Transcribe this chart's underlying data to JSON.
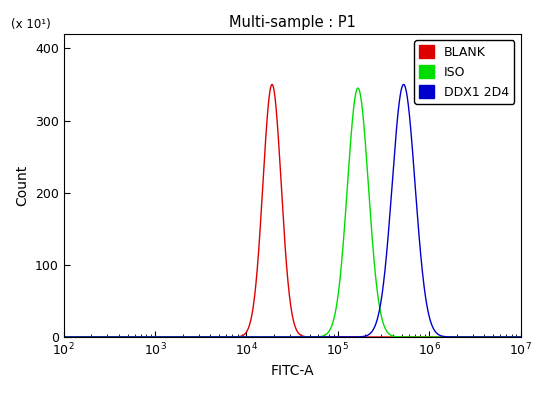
{
  "title": "Multi-sample : P1",
  "xlabel": "FITC-A",
  "ylabel": "Count",
  "ylabel_prefix": "(x 10¹)",
  "xlim": [
    100.0,
    10000000.0
  ],
  "ylim": [
    0,
    4200
  ],
  "yticks": [
    0,
    1000,
    2000,
    3000,
    4000
  ],
  "ytick_labels": [
    "0",
    "100",
    "200",
    "300",
    "400"
  ],
  "curves": [
    {
      "label": "BLANK",
      "color": "#dd0000",
      "peak_x_log": 4.28,
      "sigma_log": 0.1,
      "peak_y": 3500
    },
    {
      "label": "ISO",
      "color": "#00dd00",
      "peak_x_log": 5.22,
      "sigma_log": 0.115,
      "peak_y": 3450
    },
    {
      "label": "DDX1 2D4",
      "color": "#0000cc",
      "peak_x_log": 5.72,
      "sigma_log": 0.125,
      "peak_y": 3500
    }
  ],
  "background_color": "#ffffff",
  "figure_width": 5.47,
  "figure_height": 3.93,
  "dpi": 100
}
